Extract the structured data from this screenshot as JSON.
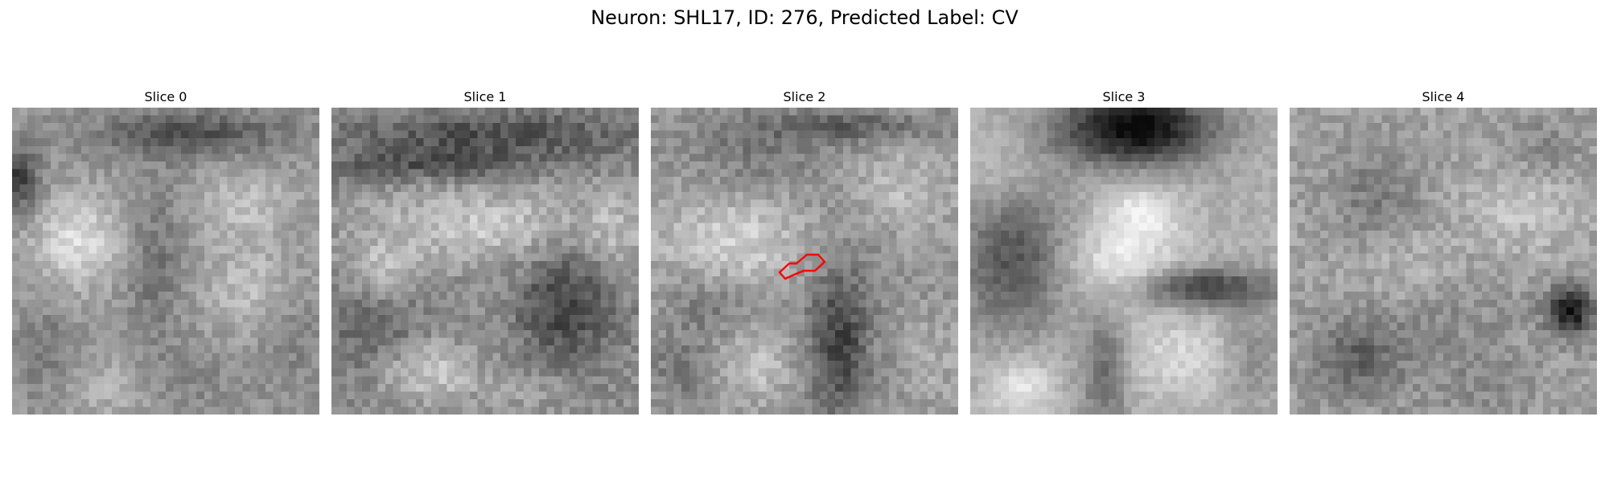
{
  "figure": {
    "title": "Neuron: SHL17, ID: 276, Predicted Label: CV"
  },
  "panels": [
    {
      "label": "Slice 0",
      "has_outline": false
    },
    {
      "label": "Slice 1",
      "has_outline": false
    },
    {
      "label": "Slice 2",
      "has_outline": true
    },
    {
      "label": "Slice 3",
      "has_outline": false
    },
    {
      "label": "Slice 4",
      "has_outline": false
    }
  ],
  "colormap": "gray",
  "outline_color": "#ff0000"
}
